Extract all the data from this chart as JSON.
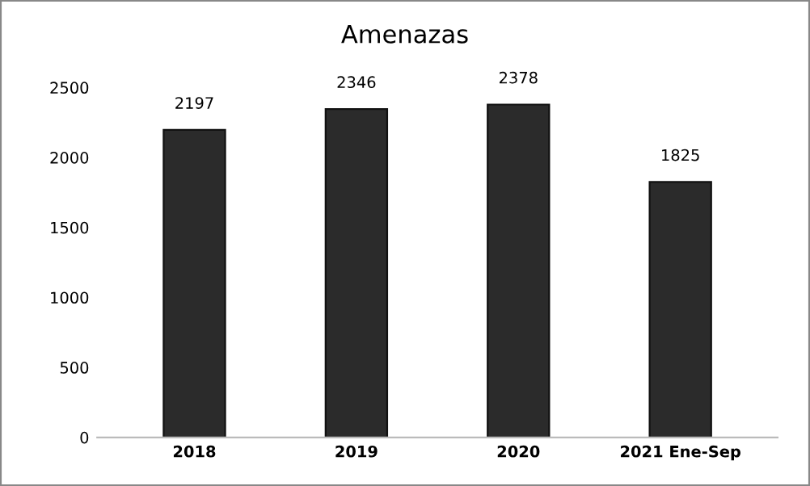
{
  "chart_data": {
    "type": "bar",
    "title": "Amenazas",
    "categories": [
      "2018",
      "2019",
      "2020",
      "2021 Ene-Sep"
    ],
    "values": [
      2197,
      2346,
      2378,
      1825
    ],
    "color": "#2b2b2b",
    "ylim": [
      0,
      2500
    ],
    "yticks": [
      0,
      500,
      1000,
      1500,
      2000,
      2500
    ],
    "data_labels": true,
    "grid": false,
    "legend": false
  }
}
